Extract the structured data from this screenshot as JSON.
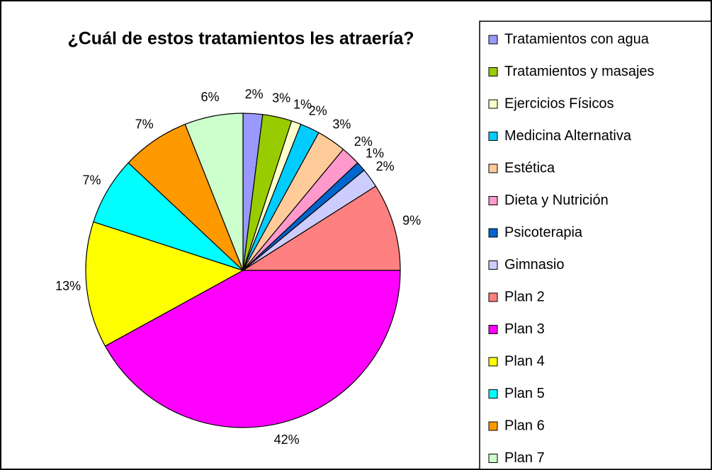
{
  "chart_data": {
    "type": "pie",
    "title": "¿Cuál de estos tratamientos les atraería?",
    "categories": [
      "Tratamientos con agua",
      "Tratamientos y masajes",
      "Ejercicios Físicos",
      "Medicina Alternativa",
      "Estética",
      "Dieta y Nutrición",
      "Psicoterapia",
      "Gimnasio",
      "Plan 2",
      "Plan 3",
      "Plan 4",
      "Plan 5",
      "Plan 6",
      "Plan 7"
    ],
    "values": [
      2,
      3,
      1,
      2,
      3,
      2,
      1,
      2,
      9,
      42,
      13,
      7,
      7,
      6
    ],
    "value_labels": [
      "2%",
      "3%",
      "1%",
      "2%",
      "3%",
      "2%",
      "1%",
      "2%",
      "9%",
      "42%",
      "13%",
      "7%",
      "7%",
      "6%"
    ],
    "colors": [
      "#9999ff",
      "#99cc00",
      "#ffffcc",
      "#00ccff",
      "#ffcc99",
      "#ff99cc",
      "#0066cc",
      "#ccccff",
      "#ff8080",
      "#ff00ff",
      "#ffff00",
      "#00ffff",
      "#ff9900",
      "#ccffcc"
    ],
    "legend": "right"
  }
}
